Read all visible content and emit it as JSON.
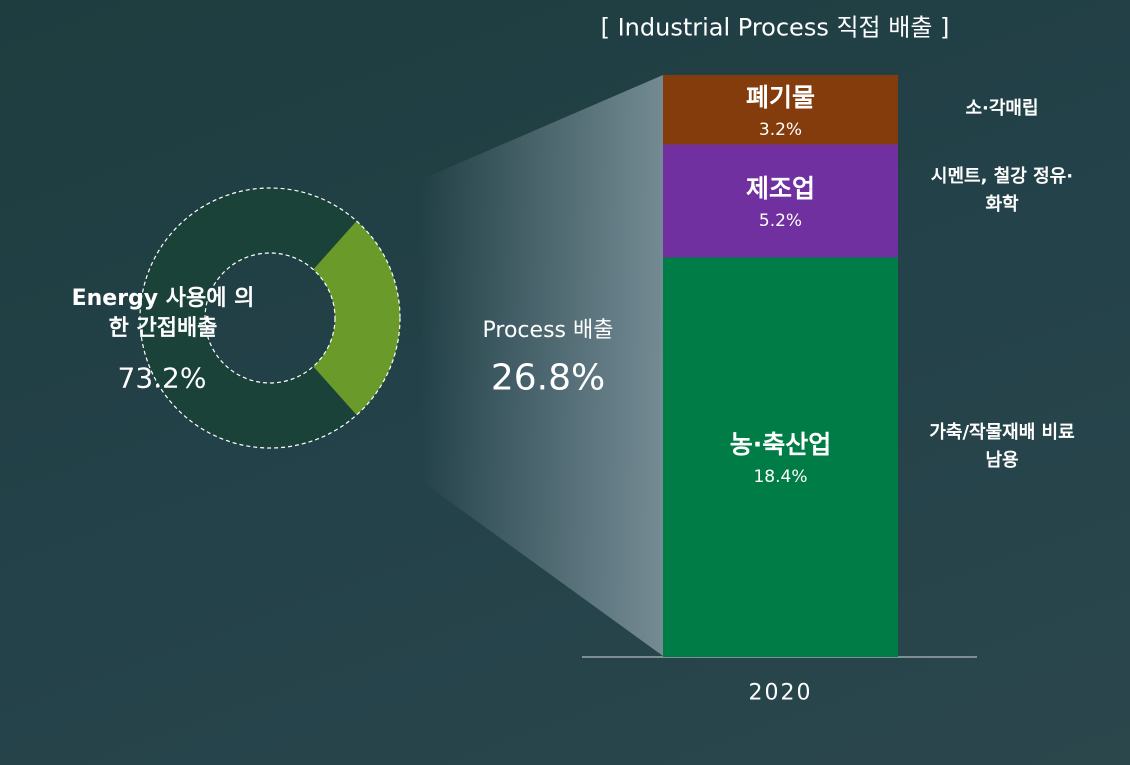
{
  "chart_data": [
    {
      "type": "pie",
      "categories": [
        "Energy 사용에 의한 간접배출",
        "Process 배출"
      ],
      "values": [
        73.2,
        26.8
      ],
      "value_labels": [
        "73.2%",
        "26.8%"
      ],
      "colors": [
        "#1b4239",
        "#6a9a2a"
      ]
    },
    {
      "type": "bar",
      "title": "[ Industrial Process 직접 배출 ]",
      "categories": [
        "2020"
      ],
      "stacked": true,
      "series": [
        {
          "name": "농·축산업",
          "color": "#007d47",
          "values": [
            18.4
          ],
          "value_labels": [
            "18.4%"
          ],
          "note": "가축/작물재배 비료 남용"
        },
        {
          "name": "제조업",
          "color": "#7030a0",
          "values": [
            5.2
          ],
          "value_labels": [
            "5.2%"
          ],
          "note": "시멘트, 철강 정유·화학"
        },
        {
          "name": "폐기물",
          "color": "#843c0c",
          "values": [
            3.2
          ],
          "value_labels": [
            "3.2%"
          ],
          "note": "소·각매립"
        }
      ]
    }
  ]
}
